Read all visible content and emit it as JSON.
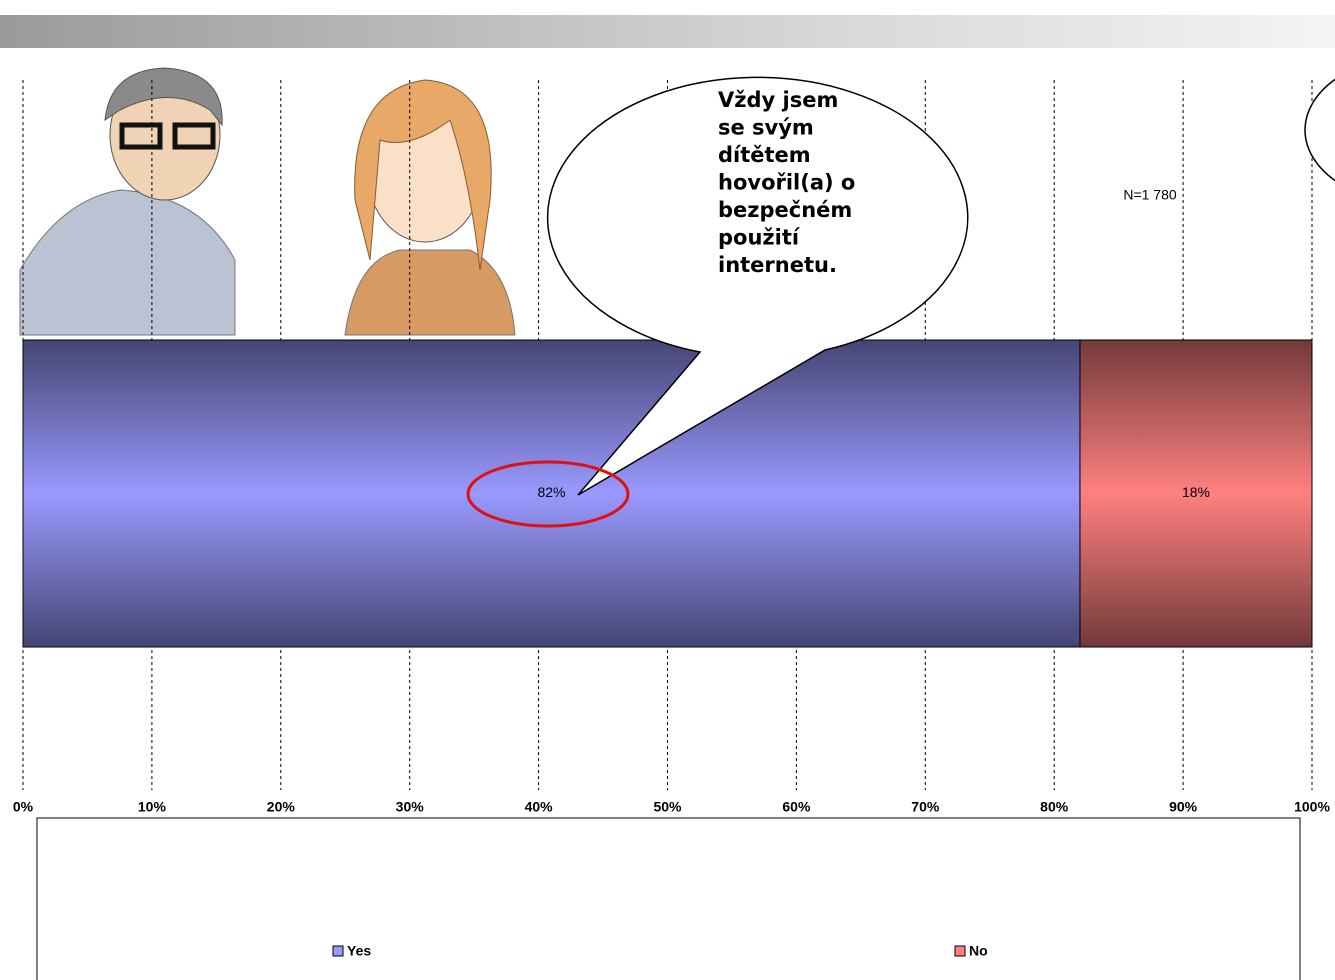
{
  "chart_data": {
    "type": "stacked-bar-horizontal",
    "annotations": {
      "bubble_lines": [
        "Vždy jsem",
        "se svým",
        "dítětem",
        "hovořil(a) o",
        "bezpečném",
        "použití",
        "internetu."
      ],
      "sample": "N=1 780"
    },
    "series": [
      {
        "name": "Yes",
        "color": "#9999ff",
        "values": [
          82
        ],
        "value_labels": [
          "82%"
        ]
      },
      {
        "name": "No",
        "color": "#ff8080",
        "values": [
          18
        ],
        "value_labels": [
          "18%"
        ]
      }
    ],
    "xlim": [
      0,
      100
    ],
    "xticks": [
      {
        "value": 0,
        "label": "0%"
      },
      {
        "value": 10,
        "label": "10%"
      },
      {
        "value": 20,
        "label": "20%"
      },
      {
        "value": 30,
        "label": "30%"
      },
      {
        "value": 40,
        "label": "40%"
      },
      {
        "value": 50,
        "label": "50%"
      },
      {
        "value": 60,
        "label": "60%"
      },
      {
        "value": 70,
        "label": "70%"
      },
      {
        "value": 80,
        "label": "80%"
      },
      {
        "value": 90,
        "label": "90%"
      },
      {
        "value": 100,
        "label": "100%"
      }
    ],
    "grid": true
  }
}
